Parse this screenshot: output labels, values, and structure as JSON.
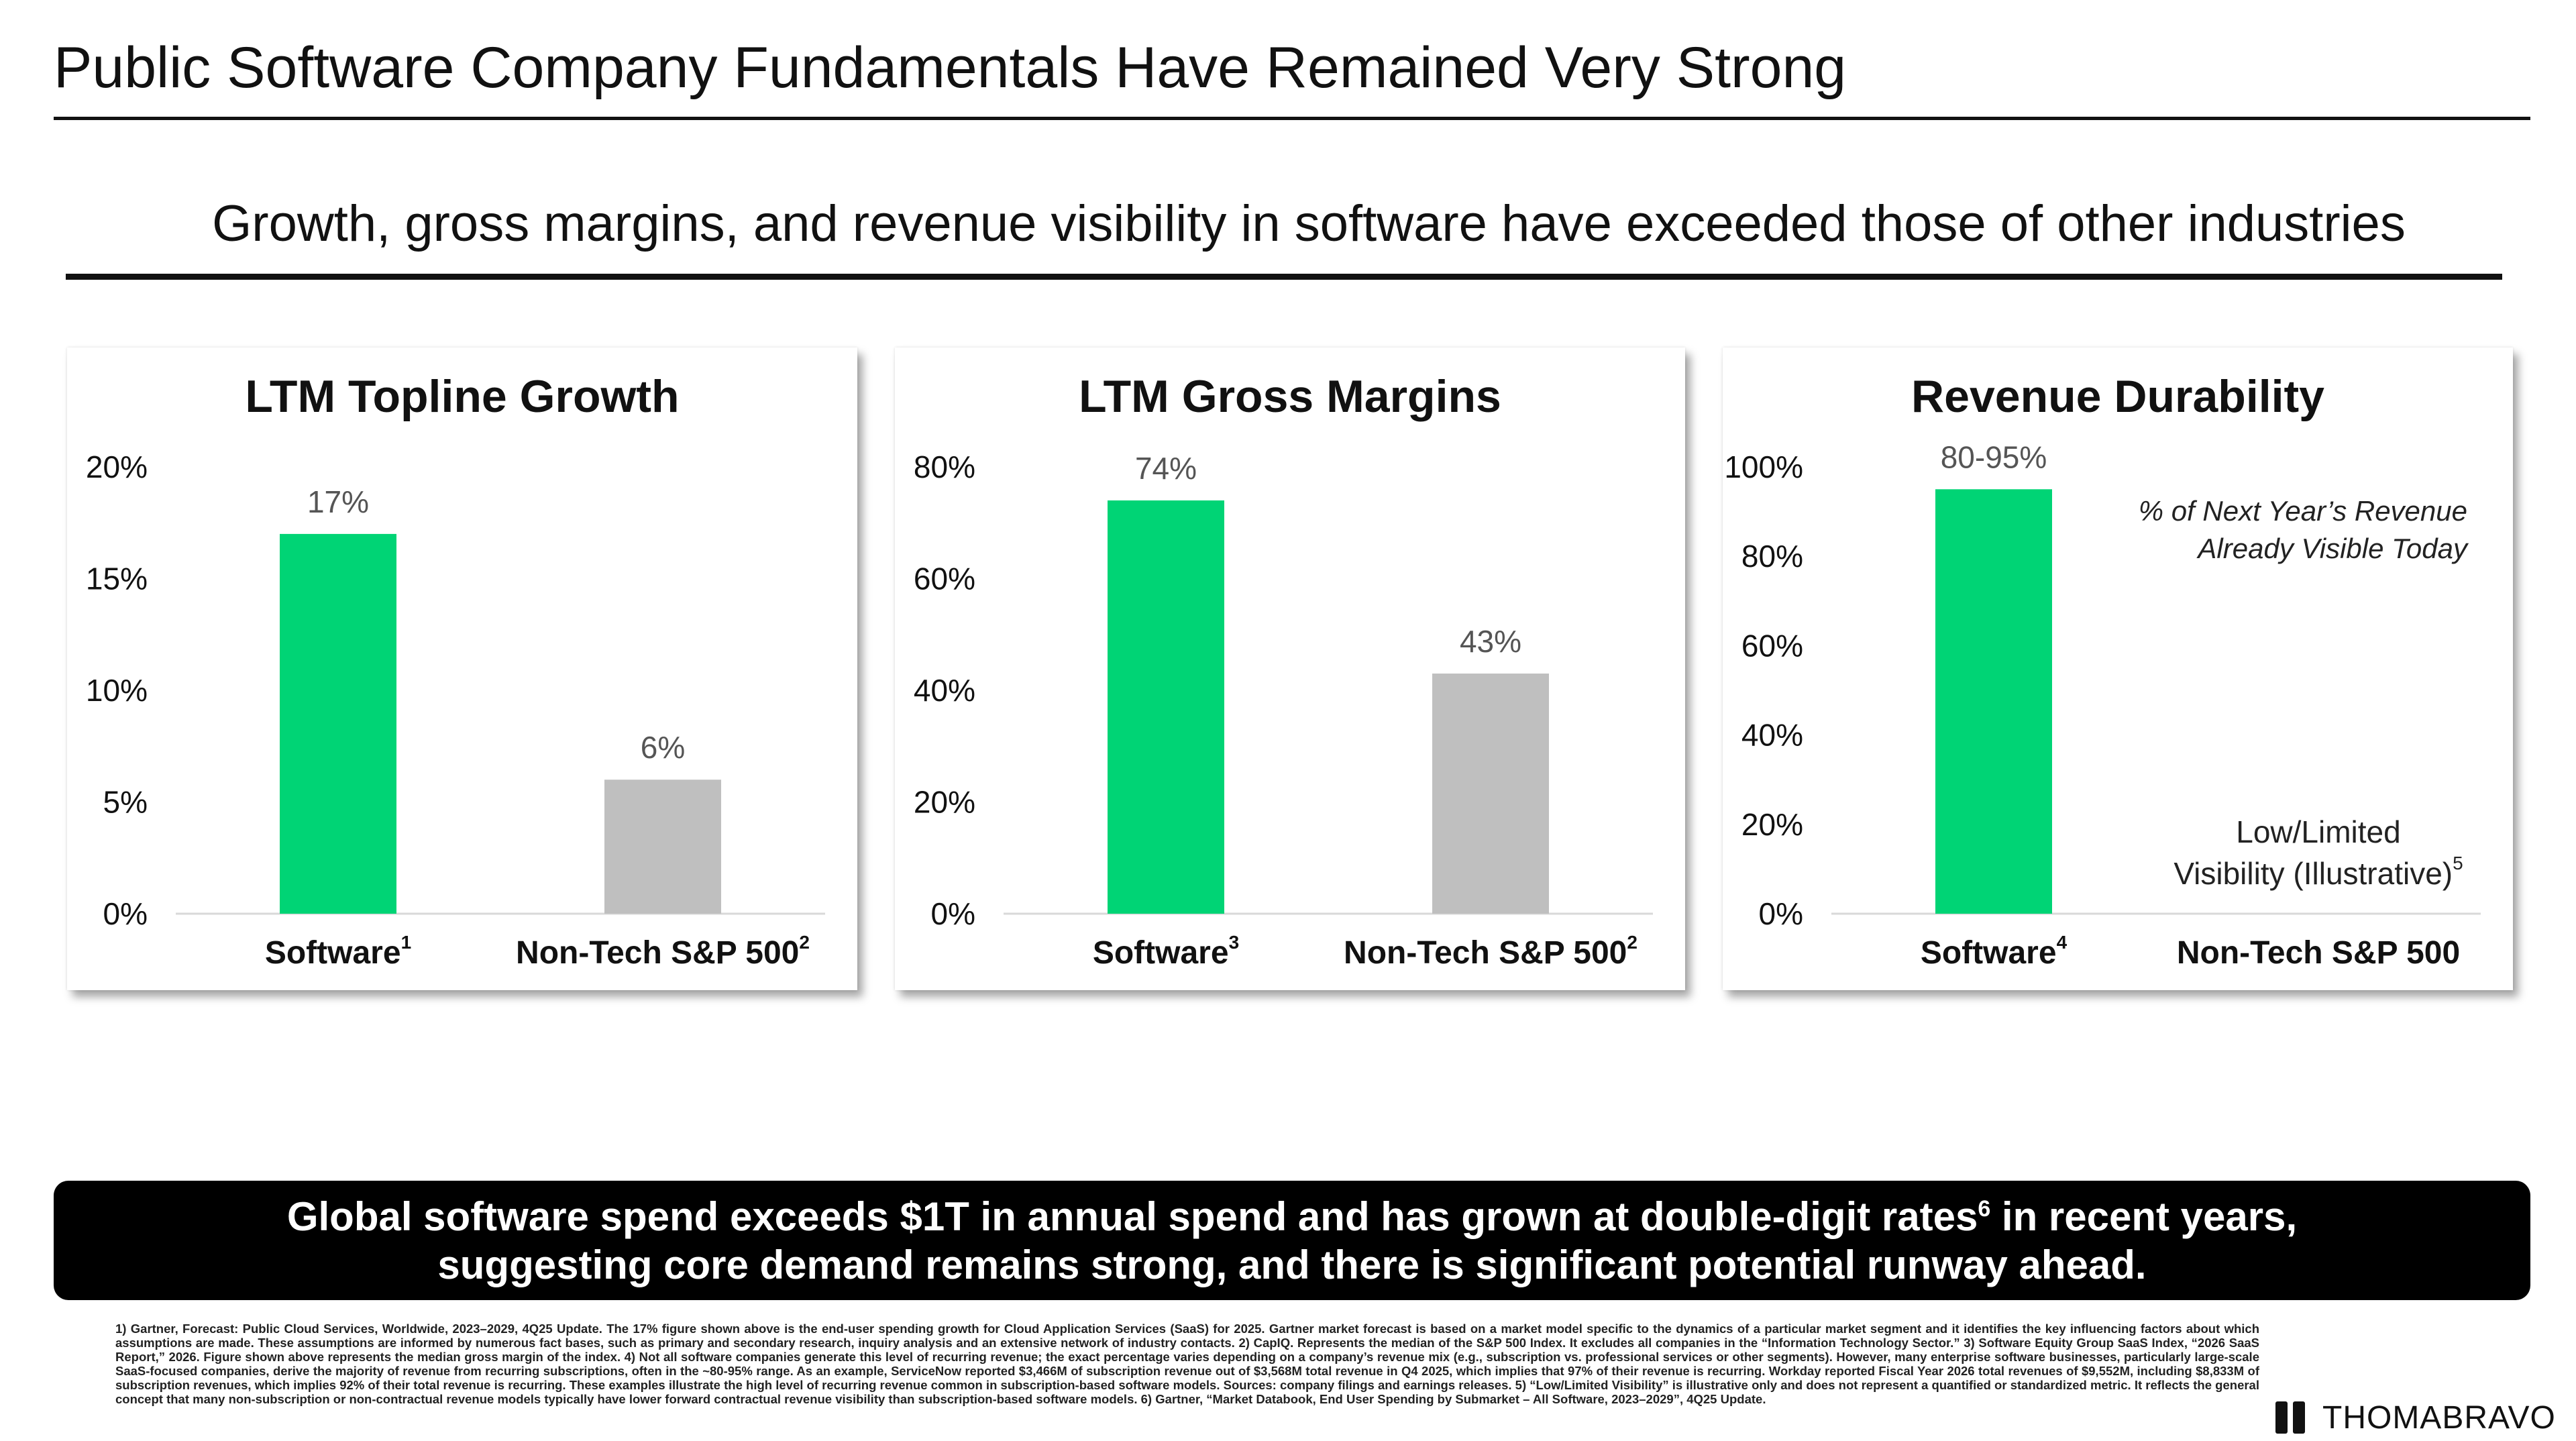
{
  "page": {
    "title": "Public Software Company Fundamentals Have Remained Very Strong",
    "subtitle": "Growth, gross margins, and revenue visibility in software have exceeded those of other industries"
  },
  "colors": {
    "software": "#00D475",
    "non_tech": "#BFBFBF",
    "axis": "#D9D9D9"
  },
  "chart_data": [
    {
      "type": "bar",
      "title": "LTM Topline Growth",
      "categories": [
        "Software",
        "Non-Tech S&P 500"
      ],
      "category_superscripts": [
        "1",
        "2"
      ],
      "values": [
        17,
        6
      ],
      "value_labels": [
        "17%",
        "6%"
      ],
      "bar_colors": [
        "#00D475",
        "#BFBFBF"
      ],
      "yticks": [
        "0%",
        "5%",
        "10%",
        "15%",
        "20%"
      ],
      "ylim": [
        0,
        20
      ],
      "grid": false
    },
    {
      "type": "bar",
      "title": "LTM Gross Margins",
      "categories": [
        "Software",
        "Non-Tech S&P 500"
      ],
      "category_superscripts": [
        "3",
        "2"
      ],
      "values": [
        74,
        43
      ],
      "value_labels": [
        "74%",
        "43%"
      ],
      "bar_colors": [
        "#00D475",
        "#BFBFBF"
      ],
      "yticks": [
        "0%",
        "20%",
        "40%",
        "60%",
        "80%"
      ],
      "ylim": [
        0,
        80
      ],
      "grid": false
    },
    {
      "type": "bar",
      "title": "Revenue Durability",
      "categories": [
        "Software",
        "Non-Tech S&P 500"
      ],
      "category_superscripts": [
        "4",
        ""
      ],
      "values": [
        95,
        null
      ],
      "value_range": [
        80,
        95
      ],
      "value_labels": [
        "80-95%",
        ""
      ],
      "bar_colors": [
        "#00D475",
        "#BFBFBF"
      ],
      "yticks": [
        "0%",
        "20%",
        "40%",
        "60%",
        "80%",
        "100%"
      ],
      "ylim": [
        0,
        100
      ],
      "grid": false,
      "annotation_lines": [
        "% of Next Year’s Revenue",
        "Already Visible Today"
      ],
      "note_lines": [
        "Low/Limited",
        "Visibility (Illustrative)"
      ],
      "note_superscript": "5"
    }
  ],
  "banner": {
    "line1_a": "Global software spend exceeds $1T in annual spend and has grown at double-digit rates",
    "line1_sup": "6",
    "line1_b": " in recent years,",
    "line2": "suggesting core demand remains strong, and there is significant potential runway ahead."
  },
  "footnote": "1) Gartner, Forecast: Public Cloud Services, Worldwide, 2023–2029, 4Q25 Update. The 17% figure shown above is the end-user spending growth for Cloud Application Services (SaaS) for 2025. Gartner market forecast is based on a market model specific to the dynamics of a particular market segment and it identifies the key influencing factors about which assumptions are made. These assumptions are informed by numerous fact bases, such as primary and secondary research, inquiry analysis and an extensive network of industry contacts. 2) CapIQ. Represents the median of the S&P 500 Index. It excludes all companies in the “Information Technology Sector.” 3) Software Equity Group SaaS Index, “2026 SaaS Report,” 2026. Figure shown above represents the median gross margin of the index. 4) Not all software companies generate this level of recurring revenue; the exact percentage varies depending on a company’s revenue mix (e.g., subscription vs. professional services or other segments). However, many enterprise software businesses, particularly large-scale SaaS-focused companies, derive the majority of revenue from recurring subscriptions, often in the ~80-95% range. As an example, ServiceNow reported $3,466M of subscription revenue out of $3,568M total revenue in Q4 2025, which implies that 97% of their revenue is recurring. Workday reported Fiscal Year 2026 total revenues of $9,552M, including $8,833M of subscription revenues, which implies 92% of their total revenue is recurring. These examples illustrate the high level of recurring revenue common in subscription-based software models. Sources: company filings and earnings releases. 5) “Low/Limited Visibility” is illustrative only and does not represent a quantified or standardized metric. It reflects the general concept that many non-subscription or non-contractual revenue models typically have lower forward contractual revenue visibility than subscription-based software models. 6) Gartner, “Market Databook, End User Spending by Submarket – All Software, 2023–2029”, 4Q25 Update.",
  "logo": {
    "text": "THOMABRAVO"
  }
}
